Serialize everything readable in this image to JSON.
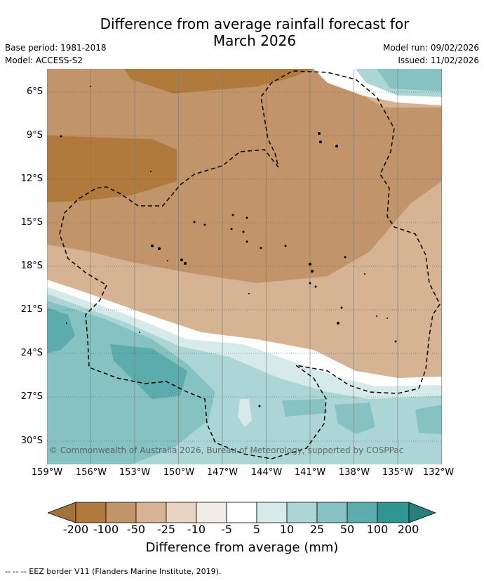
{
  "title": "Difference from average rainfall forecast for",
  "subtitle": "March 2026",
  "meta_left": {
    "base_period": "Base period: 1981-2018",
    "model": "Model: ACCESS-S2"
  },
  "meta_right": {
    "model_run": "Model run: 09/02/2026",
    "issued": "Issued: 11/02/2026"
  },
  "lat_labels": [
    "6°S",
    "9°S",
    "12°S",
    "15°S",
    "18°S",
    "21°S",
    "24°S",
    "27°S",
    "30°S"
  ],
  "lon_labels": [
    "159°W",
    "156°W",
    "153°W",
    "150°W",
    "147°W",
    "144°W",
    "141°W",
    "138°W",
    "135°W",
    "132°W"
  ],
  "copyright": "© Commonwealth of Australia 2026, Bureau of Meteorology, supported by COSPPac",
  "colorbar": {
    "title": "Difference from average (mm)",
    "ticks": [
      "-200",
      "-100",
      "-50",
      "-25",
      "-10",
      "-5",
      "5",
      "10",
      "25",
      "50",
      "100",
      "200"
    ],
    "colors": [
      "#a5713a",
      "#b07a3d",
      "#c29469",
      "#d5b393",
      "#e6d3c2",
      "#f2ece6",
      "#ffffff",
      "#d6ebe9",
      "#acd6d5",
      "#86c2c1",
      "#5bacac",
      "#2f9692",
      "#2b7f7a"
    ]
  },
  "footer": "--  --  -- EEZ border V11 (Flanders Marine Institute, 2019)."
}
